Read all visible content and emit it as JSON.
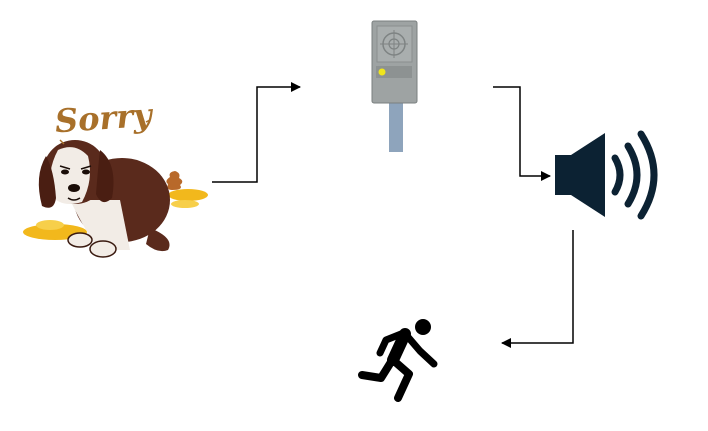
{
  "caption": {
    "sorry_text": "Sorry"
  },
  "nodes": [
    {
      "id": "dog",
      "icon": "sad-dog-icon"
    },
    {
      "id": "sensor",
      "icon": "proximity-sensor-icon"
    },
    {
      "id": "speaker",
      "icon": "speaker-sound-icon"
    },
    {
      "id": "runner",
      "icon": "running-person-icon"
    }
  ],
  "colors": {
    "line": "#000000",
    "dog_brown": "#5a2a1c",
    "dog_white": "#f2ece6",
    "puddle": "#f2b81c",
    "sensor_body": "#9aa0a0",
    "sensor_led": "#f0e51c",
    "speaker": "#0c2233"
  }
}
